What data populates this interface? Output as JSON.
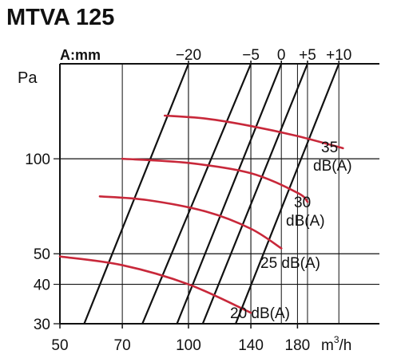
{
  "title": "MTVA 125",
  "chart_data": {
    "type": "line",
    "title": "MTVA 125",
    "xlabel": "m³/h",
    "ylabel": "Pa",
    "x_scale": "log",
    "y_scale": "log",
    "xlim": [
      50,
      280
    ],
    "ylim": [
      30,
      200
    ],
    "x_ticks": [
      50,
      70,
      100,
      140,
      180
    ],
    "x_tick_labels": [
      "50",
      "70",
      "100",
      "140",
      "180"
    ],
    "y_ticks": [
      30,
      40,
      50,
      100
    ],
    "y_tick_labels": [
      "30",
      "40",
      "50",
      "100"
    ],
    "grid": true,
    "top_axis": {
      "label": "A:mm",
      "labels": [
        {
          "text": "−20",
          "value": 100
        },
        {
          "text": "−5",
          "value": 140
        },
        {
          "text": "0",
          "value": 165
        },
        {
          "text": "+5",
          "value": 190
        },
        {
          "text": "+10",
          "value": 225
        }
      ]
    },
    "series_color": "#c8283a",
    "series": [
      {
        "name": "20 dB(A)",
        "label_lines": [
          "20 dB(A)"
        ],
        "x": [
          50,
          70,
          100,
          140
        ],
        "y": [
          49,
          46,
          40,
          32.5
        ]
      },
      {
        "name": "25 dB(A)",
        "label_lines": [
          "25 dB(A)"
        ],
        "x": [
          62,
          80,
          110,
          140,
          165
        ],
        "y": [
          76,
          74,
          68,
          60,
          52
        ]
      },
      {
        "name": "30 dB(A)",
        "label_lines": [
          "30",
          "dB(A)"
        ],
        "x": [
          70,
          100,
          140,
          180,
          190
        ],
        "y": [
          100,
          97,
          90,
          78,
          73
        ]
      },
      {
        "name": "35 dB(A)",
        "label_lines": [
          "35",
          "dB(A)"
        ],
        "x": [
          88,
          110,
          140,
          180,
          230
        ],
        "y": [
          137,
          134,
          127,
          118,
          108
        ]
      }
    ],
    "damper_lines": [
      {
        "label": "−20",
        "x": [
          57,
          100
        ],
        "y": [
          30,
          200
        ]
      },
      {
        "label": "−5",
        "x": [
          78,
          140
        ],
        "y": [
          30,
          200
        ]
      },
      {
        "label": "0",
        "x": [
          94,
          165
        ],
        "y": [
          30,
          200
        ]
      },
      {
        "label": "+5",
        "x": [
          108,
          190
        ],
        "y": [
          30,
          200
        ]
      },
      {
        "label": "+10",
        "x": [
          129,
          225
        ],
        "y": [
          30,
          200
        ]
      }
    ]
  }
}
